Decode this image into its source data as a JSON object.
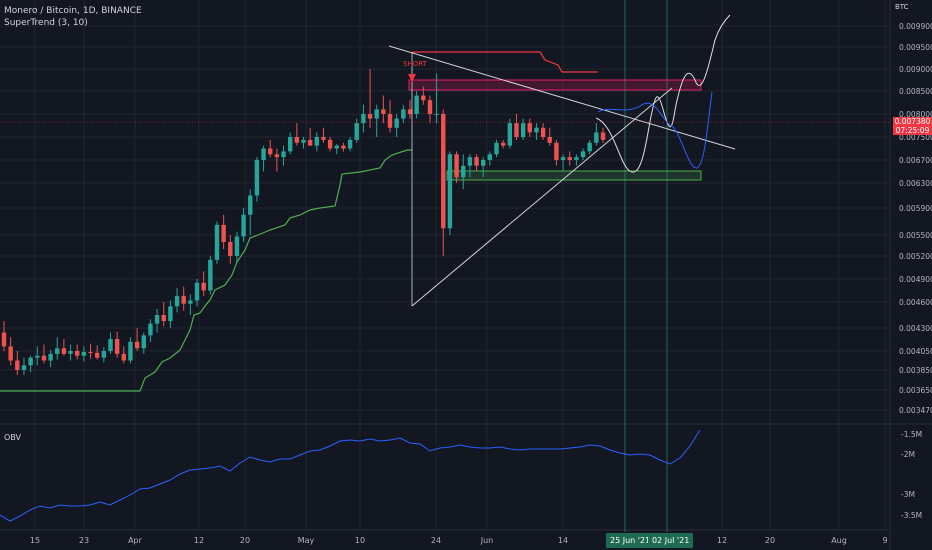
{
  "header": {
    "symbol_line": "Monero / Bitcoin, 1D, BINANCE",
    "indicator_line": "SuperTrend (3, 10)",
    "obv_label": "OBV",
    "currency": "BTC"
  },
  "annotations": {
    "short_label": "SHORT"
  },
  "price_tag": {
    "price": "0.007380",
    "countdown": "07:25:09"
  },
  "y_axis_price": [
    "0.009900",
    "0.009500",
    "0.009000",
    "0.008500",
    "0.008000",
    "0.007500",
    "0.007000",
    "0.006700",
    "0.006300",
    "0.005900",
    "0.005500",
    "0.005200",
    "0.004900",
    "0.004600",
    "0.004300",
    "0.004050",
    "0.003850",
    "0.003650",
    "0.003470"
  ],
  "y_axis_obv": [
    "-1.5M",
    "-2M",
    "-3M",
    "-3.5M"
  ],
  "x_axis": [
    "15",
    "23",
    "Apr",
    "12",
    "20",
    "May",
    "10",
    "24",
    "Jun",
    "14",
    "12",
    "20",
    "Aug",
    "9"
  ],
  "date_badges": [
    "25 Jun '21",
    "02 Jul '21"
  ],
  "colors": {
    "bg": "#131722",
    "up": "#26a69a",
    "down": "#ef5350",
    "supertrend_up": "#4caf50",
    "supertrend_down": "#f23645",
    "obv": "#2962ff",
    "grid": "#1f2430"
  },
  "chart_data": {
    "type": "candlestick",
    "title": "Monero / Bitcoin, 1D, BINANCE",
    "ylabel": "BTC",
    "ylim": [
      0.00345,
      0.0101
    ],
    "x_start": "2021-03-07",
    "x_end": "2021-08-12",
    "ohlc": [
      [
        0.00425,
        0.00438,
        0.00405,
        0.0041
      ],
      [
        0.0041,
        0.0042,
        0.0039,
        0.00395
      ],
      [
        0.00395,
        0.00405,
        0.0038,
        0.00385
      ],
      [
        0.00385,
        0.00398,
        0.0038,
        0.0039
      ],
      [
        0.0039,
        0.004,
        0.00383,
        0.00398
      ],
      [
        0.00398,
        0.0041,
        0.0039,
        0.004
      ],
      [
        0.004,
        0.00412,
        0.00392,
        0.00395
      ],
      [
        0.00395,
        0.00406,
        0.00388,
        0.00402
      ],
      [
        0.00402,
        0.0042,
        0.00396,
        0.00408
      ],
      [
        0.00408,
        0.00418,
        0.004,
        0.00402
      ],
      [
        0.00402,
        0.00412,
        0.00395,
        0.00405
      ],
      [
        0.00405,
        0.00412,
        0.00396,
        0.004
      ],
      [
        0.004,
        0.0041,
        0.00394,
        0.00404
      ],
      [
        0.00404,
        0.00413,
        0.00397,
        0.00403
      ],
      [
        0.00403,
        0.00411,
        0.00396,
        0.00398
      ],
      [
        0.00398,
        0.00409,
        0.00393,
        0.00405
      ],
      [
        0.00405,
        0.00425,
        0.00402,
        0.00418
      ],
      [
        0.00418,
        0.00426,
        0.00398,
        0.00402
      ],
      [
        0.00402,
        0.0041,
        0.00392,
        0.00395
      ],
      [
        0.00395,
        0.0042,
        0.00392,
        0.00415
      ],
      [
        0.00415,
        0.0043,
        0.00405,
        0.00408
      ],
      [
        0.00408,
        0.00425,
        0.00402,
        0.00422
      ],
      [
        0.00422,
        0.0044,
        0.00415,
        0.00435
      ],
      [
        0.00435,
        0.00452,
        0.00425,
        0.00445
      ],
      [
        0.00445,
        0.0046,
        0.00432,
        0.00438
      ],
      [
        0.00438,
        0.00462,
        0.0043,
        0.00455
      ],
      [
        0.00455,
        0.00478,
        0.00448,
        0.00468
      ],
      [
        0.00468,
        0.0048,
        0.0045,
        0.00458
      ],
      [
        0.00458,
        0.0047,
        0.00445,
        0.00462
      ],
      [
        0.00462,
        0.0049,
        0.00455,
        0.00485
      ],
      [
        0.00485,
        0.005,
        0.00468,
        0.00475
      ],
      [
        0.00475,
        0.0052,
        0.0047,
        0.00515
      ],
      [
        0.00515,
        0.0057,
        0.0051,
        0.00565
      ],
      [
        0.00565,
        0.0058,
        0.0053,
        0.0054
      ],
      [
        0.0054,
        0.0055,
        0.0051,
        0.0052
      ],
      [
        0.0052,
        0.00555,
        0.00512,
        0.00548
      ],
      [
        0.00548,
        0.0059,
        0.0054,
        0.0058
      ],
      [
        0.0058,
        0.0062,
        0.0055,
        0.0061
      ],
      [
        0.0061,
        0.0068,
        0.006,
        0.0067
      ],
      [
        0.0067,
        0.0072,
        0.0065,
        0.0071
      ],
      [
        0.0071,
        0.0074,
        0.0068,
        0.0069
      ],
      [
        0.0069,
        0.0071,
        0.0065,
        0.0068
      ],
      [
        0.0068,
        0.0072,
        0.0066,
        0.007
      ],
      [
        0.007,
        0.0076,
        0.0069,
        0.0075
      ],
      [
        0.0075,
        0.0078,
        0.0072,
        0.0073
      ],
      [
        0.0073,
        0.0075,
        0.0071,
        0.0074
      ],
      [
        0.0074,
        0.0077,
        0.0072,
        0.0072
      ],
      [
        0.0072,
        0.0076,
        0.007,
        0.0075
      ],
      [
        0.0075,
        0.0077,
        0.0073,
        0.0074
      ],
      [
        0.0074,
        0.0075,
        0.007,
        0.0071
      ],
      [
        0.0071,
        0.00725,
        0.0069,
        0.0072
      ],
      [
        0.0072,
        0.0073,
        0.007,
        0.0071
      ],
      [
        0.0071,
        0.0075,
        0.007,
        0.0074
      ],
      [
        0.0074,
        0.0079,
        0.0073,
        0.0078
      ],
      [
        0.0078,
        0.0082,
        0.0076,
        0.008
      ],
      [
        0.008,
        0.009,
        0.0077,
        0.0079
      ],
      [
        0.0079,
        0.0082,
        0.0075,
        0.0081
      ],
      [
        0.0081,
        0.0084,
        0.0078,
        0.008
      ],
      [
        0.008,
        0.0083,
        0.0076,
        0.0077
      ],
      [
        0.0077,
        0.008,
        0.0075,
        0.0079
      ],
      [
        0.0079,
        0.0082,
        0.0078,
        0.0081
      ],
      [
        0.0081,
        0.0083,
        0.0079,
        0.008
      ],
      [
        0.008,
        0.0085,
        0.0079,
        0.0084
      ],
      [
        0.0084,
        0.0086,
        0.0082,
        0.0083
      ],
      [
        0.0083,
        0.0084,
        0.0078,
        0.008
      ],
      [
        0.008,
        0.0089,
        0.0078,
        0.008
      ],
      [
        0.008,
        0.0081,
        0.0052,
        0.0056
      ],
      [
        0.0056,
        0.007,
        0.0055,
        0.0069
      ],
      [
        0.0069,
        0.007,
        0.0063,
        0.0064
      ],
      [
        0.0064,
        0.0069,
        0.0062,
        0.0066
      ],
      [
        0.0066,
        0.0069,
        0.0064,
        0.0068
      ],
      [
        0.0068,
        0.0069,
        0.0065,
        0.0066
      ],
      [
        0.0066,
        0.0068,
        0.0064,
        0.0067
      ],
      [
        0.0067,
        0.007,
        0.0066,
        0.0069
      ],
      [
        0.0069,
        0.0074,
        0.0068,
        0.0073
      ],
      [
        0.0073,
        0.0074,
        0.0071,
        0.0072
      ],
      [
        0.0072,
        0.0079,
        0.0071,
        0.0078
      ],
      [
        0.0078,
        0.008,
        0.0074,
        0.0075
      ],
      [
        0.0075,
        0.0079,
        0.0074,
        0.0078
      ],
      [
        0.0078,
        0.0079,
        0.0075,
        0.0076
      ],
      [
        0.0076,
        0.0078,
        0.0074,
        0.0077
      ],
      [
        0.0077,
        0.0078,
        0.0074,
        0.0075
      ],
      [
        0.0075,
        0.0077,
        0.0072,
        0.0073
      ],
      [
        0.0073,
        0.0074,
        0.0066,
        0.0067
      ],
      [
        0.0067,
        0.0069,
        0.0065,
        0.0068
      ],
      [
        0.0068,
        0.007,
        0.0066,
        0.0067
      ],
      [
        0.0067,
        0.0069,
        0.0066,
        0.0068
      ],
      [
        0.0068,
        0.0071,
        0.0067,
        0.007
      ],
      [
        0.007,
        0.0074,
        0.0069,
        0.0073
      ],
      [
        0.0073,
        0.0078,
        0.0072,
        0.0076
      ],
      [
        0.0076,
        0.0077,
        0.0073,
        0.0074
      ]
    ],
    "supertrend": [
      [
        0.00365,
        66,
        0.0065
      ],
      [
        0.0067,
        66
      ],
      [
        0.0068,
        88
      ],
      [
        0.00845,
        88
      ],
      [
        0.00845,
        72
      ]
    ],
    "obv": [
      "-3.6M",
      "-3.5M",
      "-3.3M",
      "-3.1M",
      "-2.9M",
      "-2.6M",
      "-2.4M",
      "-2.3M",
      "-2.0M",
      "-1.7M",
      "-1.8M",
      "-1.9M",
      "-1.8M",
      "-1.8M",
      "-1.9M",
      "-2.0M",
      "-2.1M",
      "-1.5M"
    ]
  }
}
